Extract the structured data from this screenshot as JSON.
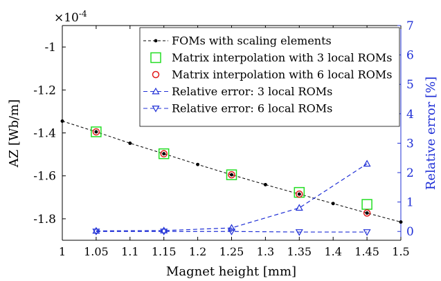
{
  "chart_data": {
    "type": "line",
    "title": "",
    "xlabel": "Magnet height [mm]",
    "ylabel_left": "AZ [Wb/m]",
    "ylabel_right": "Relative error [%]",
    "exponent_label": "×10",
    "exponent_power": "-4",
    "xlim": [
      1,
      1.5
    ],
    "ylim_left": [
      -1.9,
      -0.9
    ],
    "ylim_right": [
      -0.3,
      7
    ],
    "x_ticks": [
      "1",
      "1.05",
      "1.1",
      "1.15",
      "1.2",
      "1.25",
      "1.3",
      "1.35",
      "1.4",
      "1.45",
      "1.5"
    ],
    "y_left_ticks": [
      "-1",
      "-1.2",
      "-1.4",
      "-1.6",
      "-1.8"
    ],
    "y_right_ticks": [
      "0",
      "1",
      "2",
      "3",
      "4",
      "5",
      "6",
      "7"
    ],
    "grid": false,
    "legend_position": "top-right",
    "colors": {
      "black": "#000000",
      "green": "#22dd22",
      "red": "#e21b1b",
      "blue": "#1f2fd6"
    },
    "series": [
      {
        "name": "FOMs with scaling elements",
        "axis": "left",
        "style": "black-dashed-dot",
        "x": [
          1,
          1.05,
          1.1,
          1.15,
          1.2,
          1.25,
          1.3,
          1.35,
          1.4,
          1.45,
          1.5
        ],
        "y": [
          -1.345,
          -1.395,
          -1.448,
          -1.497,
          -1.547,
          -1.595,
          -1.641,
          -1.685,
          -1.729,
          -1.773,
          -1.815
        ]
      },
      {
        "name": "Matrix interpolation with 3 local ROMs",
        "axis": "left",
        "style": "green-square",
        "x": [
          1.05,
          1.15,
          1.25,
          1.35,
          1.45
        ],
        "y": [
          -1.395,
          -1.497,
          -1.595,
          -1.677,
          -1.733
        ]
      },
      {
        "name": "Matrix interpolation with 6 local ROMs",
        "axis": "left",
        "style": "red-circle",
        "x": [
          1.05,
          1.15,
          1.25,
          1.35,
          1.45
        ],
        "y": [
          -1.395,
          -1.497,
          -1.595,
          -1.685,
          -1.773
        ]
      },
      {
        "name": "Relative error: 3 local ROMs",
        "axis": "right",
        "style": "blue-dashed-triangle-up",
        "x": [
          1.05,
          1.15,
          1.25,
          1.35,
          1.45
        ],
        "y": [
          0.02,
          0.03,
          0.12,
          0.8,
          2.3
        ]
      },
      {
        "name": "Relative error: 6 local ROMs",
        "axis": "right",
        "style": "blue-dashed-triangle-down",
        "x": [
          1.05,
          1.15,
          1.25,
          1.35,
          1.45
        ],
        "y": [
          0.0,
          0.0,
          0.0,
          -0.02,
          -0.02
        ]
      }
    ]
  }
}
